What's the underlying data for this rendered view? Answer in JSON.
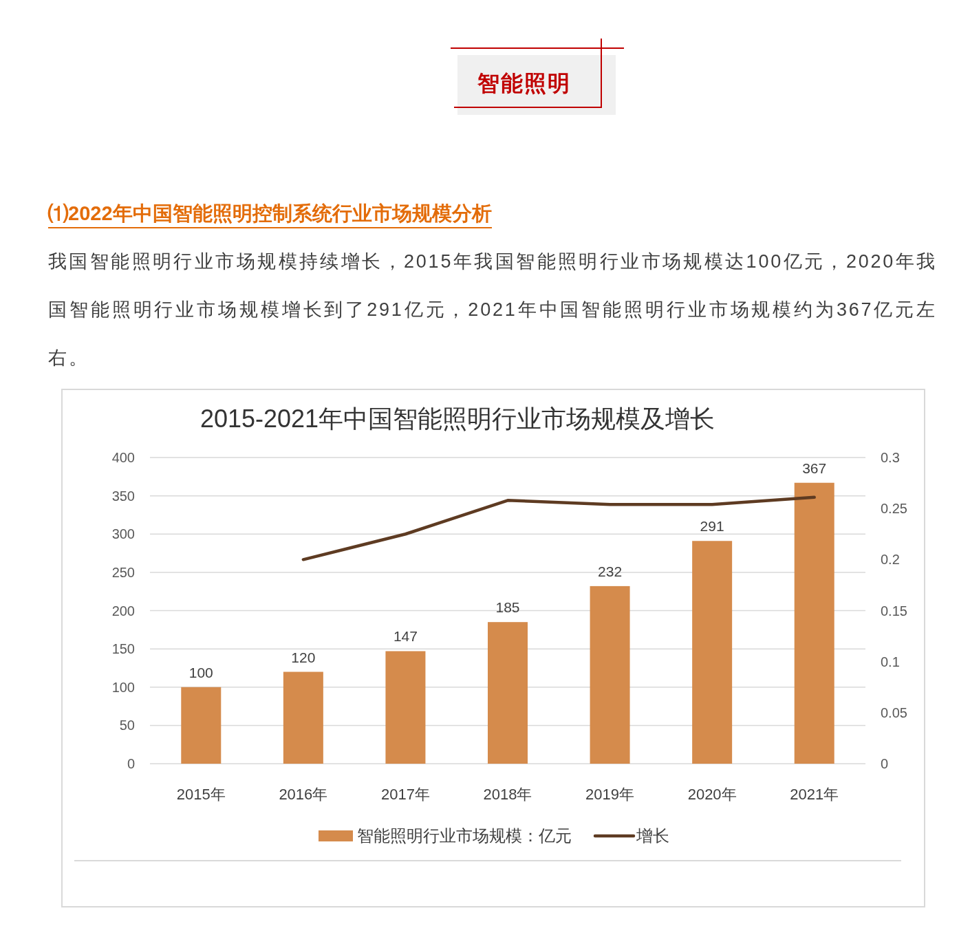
{
  "chart_data": {
    "type": "bar",
    "title": "2015-2021年中国智能照明行业市场规模及增长",
    "annotations": [
      "智能照明",
      "⑴2022年中国智能照明控制系统行业市场规模分析",
      "我国智能照明行业市场规模持续增长，2015年我国智能照明行业市场规模达100亿元，2020年我国智能照明行业市场规模增长到了291亿元，2021年中国智能照明行业市场规模约为367亿元左右。"
    ],
    "categories": [
      "2015年",
      "2016年",
      "2017年",
      "2018年",
      "2019年",
      "2020年",
      "2021年"
    ],
    "series": [
      {
        "name": "智能照明行业市场规模：亿元",
        "color": "#d58b4c",
        "values": [
          100,
          120,
          147,
          185,
          232,
          291,
          367
        ],
        "value_labels": [
          "100",
          "120",
          "147",
          "185",
          "232",
          "291",
          "367"
        ]
      },
      {
        "name": "增长",
        "type": "line",
        "axis": "y2",
        "color": "#5e3b22",
        "values": [
          null,
          0.2,
          0.225,
          0.258,
          0.254,
          0.254,
          0.261
        ]
      }
    ],
    "ylim": [
      0,
      400
    ],
    "yticks": [
      0,
      50,
      100,
      150,
      200,
      250,
      300,
      350,
      400
    ],
    "y2lim": [
      0,
      0.3
    ],
    "y2ticks": [
      0,
      0.05,
      0.1,
      0.15,
      0.2,
      0.25,
      0.3
    ],
    "grid": "y",
    "legend": "bottom"
  }
}
